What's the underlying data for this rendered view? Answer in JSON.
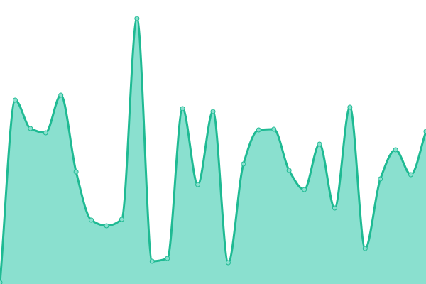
{
  "chart_data": {
    "type": "area",
    "title": "",
    "xlabel": "",
    "ylabel": "",
    "grid": false,
    "axes_visible": false,
    "smooth": true,
    "x": [
      0,
      1,
      2,
      3,
      4,
      5,
      6,
      7,
      8,
      9,
      10,
      11,
      12,
      13,
      14,
      15,
      16,
      17,
      18,
      19,
      20,
      21,
      22,
      23,
      24,
      25,
      26,
      27,
      28
    ],
    "values": [
      2,
      259,
      219,
      213,
      266,
      158,
      90,
      82,
      91,
      374,
      32,
      36,
      247,
      140,
      243,
      30,
      169,
      217,
      218,
      160,
      133,
      197,
      107,
      249,
      50,
      148,
      189,
      154,
      215
    ],
    "ylim": [
      0,
      400
    ],
    "colors": {
      "line": "#1fba93",
      "fill": "#8ae0cf",
      "marker": "#8ae0cf"
    }
  }
}
